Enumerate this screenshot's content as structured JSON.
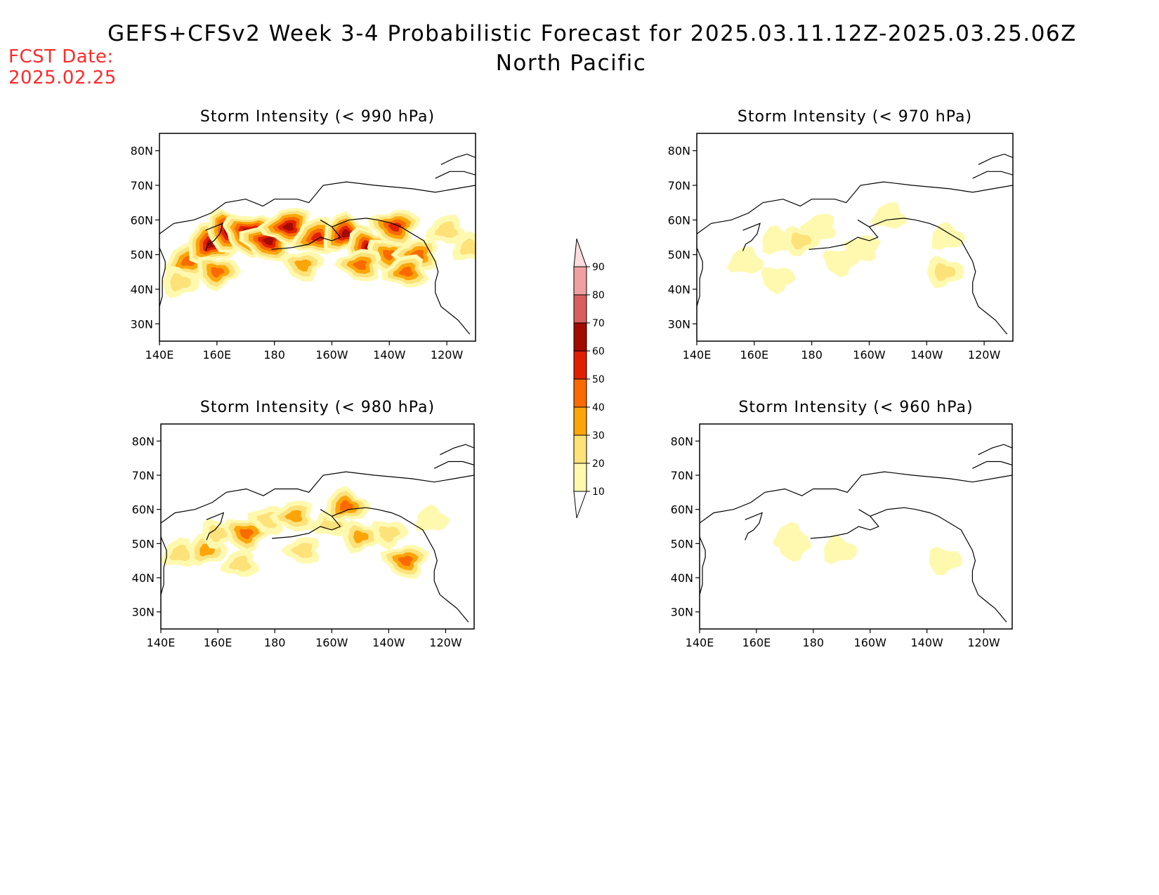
{
  "header": {
    "title": "GEFS+CFSv2 Week 3-4 Probabilistic Forecast for 2025.03.11.12Z-2025.03.25.06Z",
    "region": "North Pacific",
    "fcst_label": "FCST Date:",
    "fcst_value": "2025.02.25"
  },
  "colorbar": {
    "levels": [
      10,
      20,
      30,
      40,
      50,
      60,
      70,
      80,
      90
    ],
    "labels": [
      "10",
      "20",
      "30",
      "40",
      "50",
      "60",
      "70",
      "80",
      "90"
    ],
    "colors": [
      "#fff9b0",
      "#fde27a",
      "#fca50a",
      "#fa6a00",
      "#e02000",
      "#a30a00",
      "#d95f5f",
      "#f0a0a0",
      "#fcdcdc"
    ]
  },
  "chart_data": [
    {
      "type": "heatmap",
      "title": "Storm Intensity (< 990 hPa)",
      "x_ticks": [
        "140E",
        "160E",
        "180",
        "160W",
        "140W",
        "120W"
      ],
      "y_ticks": [
        "30N",
        "40N",
        "50N",
        "60N",
        "70N",
        "80N"
      ],
      "xlim": [
        140,
        250
      ],
      "ylim": [
        25,
        85
      ],
      "blobs": [
        {
          "lon": 150,
          "lat": 48,
          "p": 45
        },
        {
          "lon": 158,
          "lat": 53,
          "p": 65
        },
        {
          "lon": 165,
          "lat": 57,
          "p": 70
        },
        {
          "lon": 172,
          "lat": 56,
          "p": 75
        },
        {
          "lon": 178,
          "lat": 54,
          "p": 65
        },
        {
          "lon": 185,
          "lat": 58,
          "p": 60
        },
        {
          "lon": 195,
          "lat": 55,
          "p": 55
        },
        {
          "lon": 205,
          "lat": 56,
          "p": 60
        },
        {
          "lon": 213,
          "lat": 52,
          "p": 60
        },
        {
          "lon": 220,
          "lat": 50,
          "p": 45
        },
        {
          "lon": 222,
          "lat": 58,
          "p": 55
        },
        {
          "lon": 230,
          "lat": 50,
          "p": 40
        },
        {
          "lon": 240,
          "lat": 57,
          "p": 25
        },
        {
          "lon": 248,
          "lat": 52,
          "p": 20
        },
        {
          "lon": 147,
          "lat": 42,
          "p": 25
        },
        {
          "lon": 160,
          "lat": 45,
          "p": 40
        },
        {
          "lon": 190,
          "lat": 47,
          "p": 30
        },
        {
          "lon": 210,
          "lat": 47,
          "p": 40
        },
        {
          "lon": 226,
          "lat": 45,
          "p": 40
        }
      ]
    },
    {
      "type": "heatmap",
      "title": "Storm Intensity (< 970 hPa)",
      "x_ticks": [
        "140E",
        "160E",
        "180",
        "160W",
        "140W",
        "120W"
      ],
      "y_ticks": [
        "30N",
        "40N",
        "50N",
        "60N",
        "70N",
        "80N"
      ],
      "xlim": [
        140,
        250
      ],
      "ylim": [
        25,
        85
      ],
      "blobs": [
        {
          "lon": 157,
          "lat": 48,
          "p": 15
        },
        {
          "lon": 168,
          "lat": 54,
          "p": 15
        },
        {
          "lon": 176,
          "lat": 54,
          "p": 20
        },
        {
          "lon": 190,
          "lat": 48,
          "p": 15
        },
        {
          "lon": 198,
          "lat": 52,
          "p": 12
        },
        {
          "lon": 183,
          "lat": 58,
          "p": 12
        },
        {
          "lon": 207,
          "lat": 61,
          "p": 12
        },
        {
          "lon": 227,
          "lat": 55,
          "p": 12
        },
        {
          "lon": 226,
          "lat": 45,
          "p": 25
        },
        {
          "lon": 168,
          "lat": 43,
          "p": 12
        }
      ]
    },
    {
      "type": "heatmap",
      "title": "Storm Intensity (< 980 hPa)",
      "x_ticks": [
        "140E",
        "160E",
        "180",
        "160W",
        "140W",
        "120W"
      ],
      "y_ticks": [
        "30N",
        "40N",
        "50N",
        "60N",
        "70N",
        "80N"
      ],
      "xlim": [
        140,
        250
      ],
      "ylim": [
        25,
        85
      ],
      "blobs": [
        {
          "lon": 147,
          "lat": 47,
          "p": 25
        },
        {
          "lon": 156,
          "lat": 48,
          "p": 30
        },
        {
          "lon": 160,
          "lat": 53,
          "p": 20
        },
        {
          "lon": 170,
          "lat": 53,
          "p": 45
        },
        {
          "lon": 178,
          "lat": 57,
          "p": 25
        },
        {
          "lon": 187,
          "lat": 58,
          "p": 35
        },
        {
          "lon": 200,
          "lat": 56,
          "p": 25
        },
        {
          "lon": 205,
          "lat": 61,
          "p": 45
        },
        {
          "lon": 210,
          "lat": 52,
          "p": 30
        },
        {
          "lon": 220,
          "lat": 53,
          "p": 20
        },
        {
          "lon": 226,
          "lat": 45,
          "p": 45
        },
        {
          "lon": 190,
          "lat": 48,
          "p": 20
        },
        {
          "lon": 168,
          "lat": 44,
          "p": 20
        },
        {
          "lon": 235,
          "lat": 57,
          "p": 12
        }
      ]
    },
    {
      "type": "heatmap",
      "title": "Storm Intensity (< 960 hPa)",
      "x_ticks": [
        "140E",
        "160E",
        "180",
        "160W",
        "140W",
        "120W"
      ],
      "y_ticks": [
        "30N",
        "40N",
        "50N",
        "60N",
        "70N",
        "80N"
      ],
      "xlim": [
        140,
        250
      ],
      "ylim": [
        25,
        85
      ],
      "blobs": [
        {
          "lon": 172,
          "lat": 52,
          "p": 12
        },
        {
          "lon": 189,
          "lat": 48,
          "p": 15
        },
        {
          "lon": 226,
          "lat": 45,
          "p": 15
        },
        {
          "lon": 173,
          "lat": 49,
          "p": 12
        }
      ]
    }
  ]
}
